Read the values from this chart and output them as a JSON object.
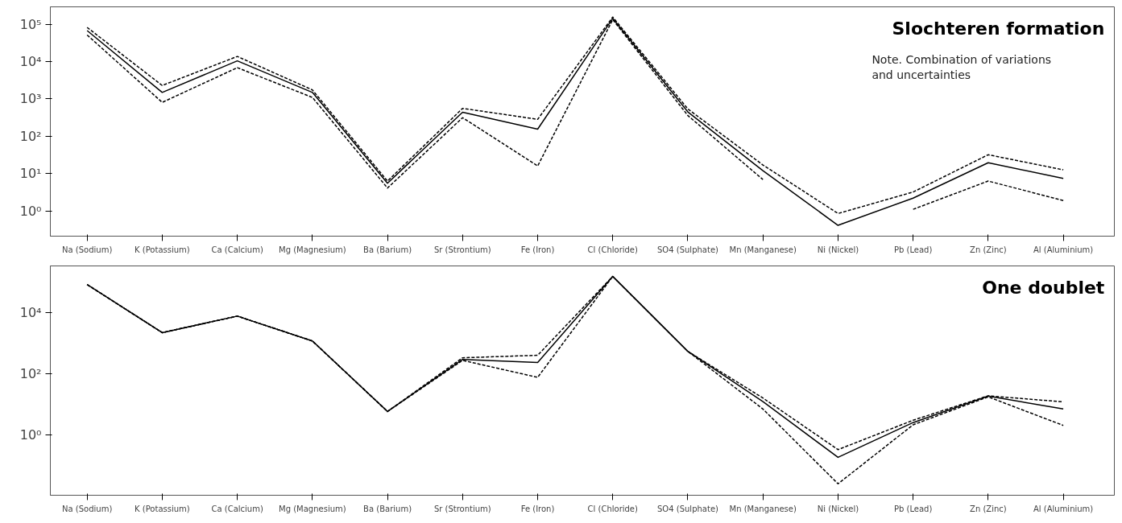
{
  "chart_data": [
    {
      "type": "line",
      "title": "Slochteren formation",
      "annotations": [
        "Note. Combination of variations and uncertainties"
      ],
      "categories": [
        "Na (Sodium)",
        "K (Potassium)",
        "Ca (Calcium)",
        "Mg (Magnesium)",
        "Ba (Barium)",
        "Sr (Strontium)",
        "Fe (Iron)",
        "Cl (Chloride)",
        "SO4 (Sulphate)",
        "Mn (Manganese)",
        "Ni (Nickel)",
        "Pb (Lead)",
        "Zn (Zinc)",
        "Al (Aluminium)"
      ],
      "series": [
        {
          "color": "#000000",
          "line_style": "solid",
          "values": [
            68000,
            1500,
            10500,
            1500,
            5.5,
            440,
            155,
            144000,
            450,
            12,
            0.41,
            2.2,
            19.5,
            7.4
          ]
        },
        {
          "color": "#000000",
          "line_style": "dashed",
          "values": [
            83000,
            2300,
            13800,
            1750,
            6.3,
            560,
            285,
            157000,
            540,
            17,
            0.85,
            3.2,
            32,
            12.6
          ]
        },
        {
          "color": "#000000",
          "line_style": "dashed",
          "values": [
            52000,
            810,
            6900,
            1100,
            4.1,
            315,
            16,
            134000,
            360,
            6.9,
            null,
            1.1,
            6.3,
            1.9
          ]
        }
      ],
      "log": "y",
      "ylim": [
        0.21,
        295000
      ],
      "yticks": [
        {
          "value": 1,
          "label": "10⁰"
        },
        {
          "value": 10,
          "label": "10¹"
        },
        {
          "value": 100,
          "label": "10²"
        },
        {
          "value": 1000,
          "label": "10³"
        },
        {
          "value": 10000,
          "label": "10⁴"
        },
        {
          "value": 100000,
          "label": "10⁵"
        }
      ],
      "grid": false
    },
    {
      "type": "line",
      "title": "One doublet",
      "categories": [
        "Na (Sodium)",
        "K (Potassium)",
        "Ca (Calcium)",
        "Mg (Magnesium)",
        "Ba (Barium)",
        "Sr (Strontium)",
        "Fe (Iron)",
        "Cl (Chloride)",
        "SO4 (Sulphate)",
        "Mn (Manganese)",
        "Ni (Nickel)",
        "Pb (Lead)",
        "Zn (Zinc)",
        "Al (Aluminium)"
      ],
      "series": [
        {
          "color": "#000000",
          "line_style": "solid",
          "values": [
            84000,
            2250,
            7800,
            1200,
            6.0,
            300,
            240,
            155000,
            550,
            12.6,
            0.19,
            2.6,
            19,
            7.2
          ]
        },
        {
          "color": "#000000",
          "line_style": "dashed",
          "values": [
            84000,
            2250,
            7800,
            1200,
            6.0,
            340,
            410,
            155000,
            550,
            16.5,
            0.34,
            3.1,
            19.5,
            12.3
          ]
        },
        {
          "color": "#000000",
          "line_style": "dashed",
          "values": [
            84000,
            2250,
            7800,
            1200,
            6.0,
            280,
            78,
            155000,
            550,
            7.2,
            0.026,
            2.2,
            18,
            2.1
          ]
        }
      ],
      "log": "y",
      "ylim": [
        0.011,
        340000
      ],
      "yticks": [
        {
          "value": 1,
          "label": "10⁰"
        },
        {
          "value": 100,
          "label": "10²"
        },
        {
          "value": 10000,
          "label": "10⁴"
        }
      ],
      "grid": false
    }
  ]
}
